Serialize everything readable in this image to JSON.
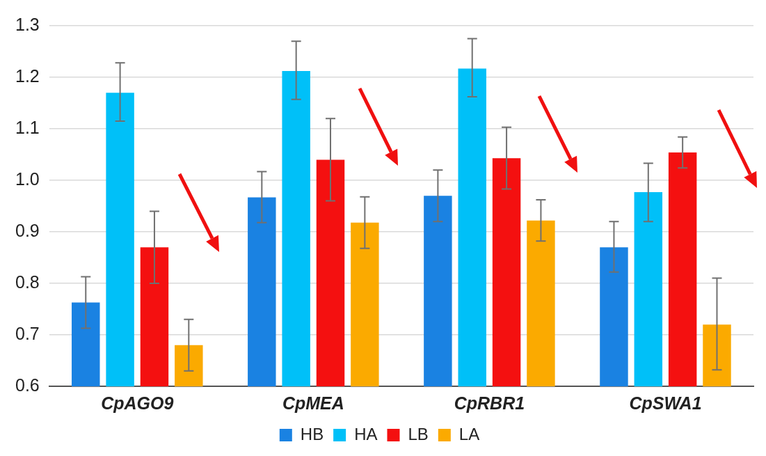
{
  "chart_data": {
    "type": "bar",
    "categories": [
      "CpAGO9",
      "CpMEA",
      "CpRBR1",
      "CpSWA1"
    ],
    "series": [
      {
        "name": "HB",
        "color": "#1a82e2",
        "values": [
          0.763,
          0.967,
          0.97,
          0.87
        ],
        "errors": [
          [
            0.713,
            0.813
          ],
          [
            0.918,
            1.017
          ],
          [
            0.92,
            1.02
          ],
          [
            0.822,
            0.92
          ]
        ]
      },
      {
        "name": "HA",
        "color": "#00c0f8",
        "values": [
          1.17,
          1.212,
          1.217,
          0.977
        ],
        "errors": [
          [
            1.115,
            1.228
          ],
          [
            1.157,
            1.27
          ],
          [
            1.162,
            1.275
          ],
          [
            0.92,
            1.033
          ]
        ]
      },
      {
        "name": "LB",
        "color": "#f41010",
        "values": [
          0.87,
          1.04,
          1.043,
          1.054
        ],
        "errors": [
          [
            0.8,
            0.94
          ],
          [
            0.96,
            1.12
          ],
          [
            0.983,
            1.103
          ],
          [
            1.024,
            1.084
          ]
        ]
      },
      {
        "name": "LA",
        "color": "#fbaa00",
        "values": [
          0.68,
          0.918,
          0.922,
          0.72
        ],
        "errors": [
          [
            0.63,
            0.73
          ],
          [
            0.868,
            0.968
          ],
          [
            0.882,
            0.962
          ],
          [
            0.632,
            0.81
          ]
        ]
      }
    ],
    "ylim": [
      0.6,
      1.3
    ],
    "yticks": [
      0.6,
      0.7,
      0.8,
      0.9,
      {
        "value": 1,
        "label": "1.0"
      },
      1.1,
      1.2,
      1.3
    ],
    "grid": "y",
    "legend": "bottom"
  }
}
